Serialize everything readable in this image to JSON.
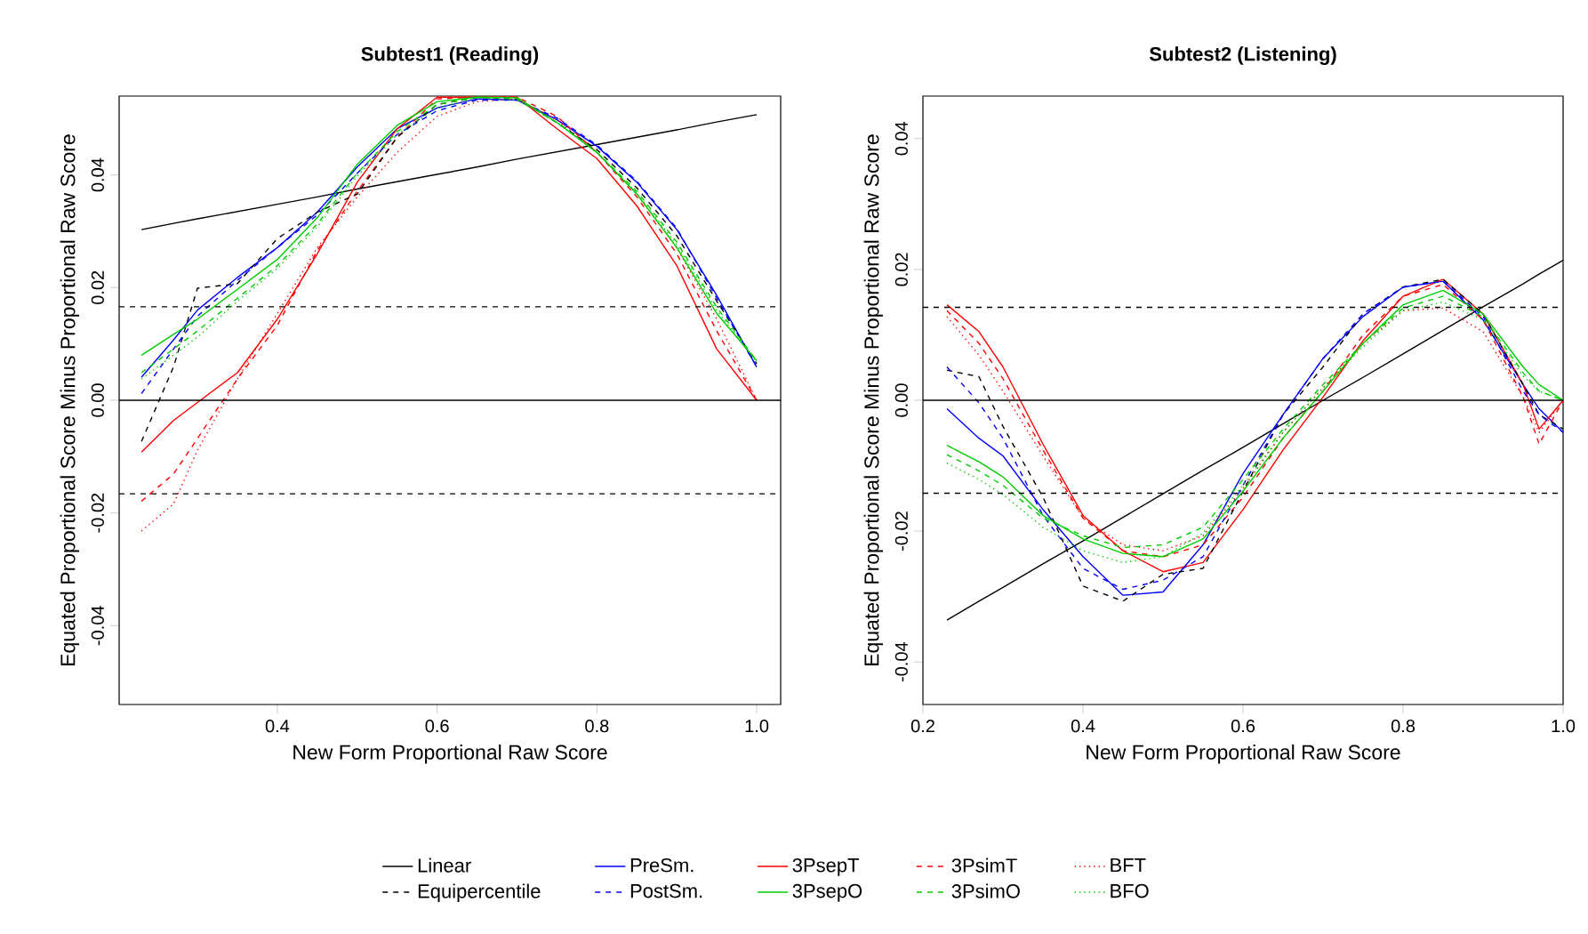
{
  "chart_data": [
    {
      "type": "line",
      "title": "Subtest1 (Reading)",
      "xlabel": "New Form Proportional Raw Score",
      "ylabel": "Equated Proportional Score Minus Proportional Raw Score",
      "legend": "bottom",
      "xlim": [
        0.202,
        1.03
      ],
      "ylim": [
        -0.054,
        0.054
      ],
      "xticks": [
        0.4,
        0.6,
        0.8,
        {
          "value": 1.0,
          "label": "1.0"
        }
      ],
      "yticks": [
        {
          "value": -0.04,
          "label": "-0.04"
        },
        {
          "value": -0.02,
          "label": "-0.02"
        },
        {
          "value": 0,
          "label": "0.00"
        },
        {
          "value": 0.02,
          "label": "0.02"
        },
        {
          "value": 0.04,
          "label": "0.04"
        }
      ],
      "x": [
        0.23,
        0.27,
        0.3,
        0.35,
        0.4,
        0.45,
        0.5,
        0.55,
        0.6,
        0.65,
        0.7,
        0.75,
        0.8,
        0.85,
        0.9,
        0.95,
        1.0
      ],
      "ref_lines": [
        {
          "axis": "y",
          "value": 0,
          "color": "#000000",
          "line_style": "solid"
        },
        {
          "axis": "y",
          "value": 0.0166,
          "color": "#000000",
          "line_style": "dashed"
        },
        {
          "axis": "y",
          "value": -0.0166,
          "color": "#000000",
          "line_style": "dashed"
        }
      ],
      "series": [
        {
          "name": "Linear",
          "color": "#000000",
          "line_style": "solid",
          "values": [
            0.0303,
            0.0314,
            0.0322,
            0.0335,
            0.0348,
            0.0361,
            0.0375,
            0.0388,
            0.0401,
            0.0414,
            0.0428,
            0.0441,
            0.0454,
            0.0467,
            0.048,
            0.0494,
            0.0507
          ]
        },
        {
          "name": "PreSm.",
          "color": "#0000ff",
          "line_style": "solid",
          "values": [
            0.0041,
            0.0107,
            0.016,
            0.0218,
            0.0271,
            0.0334,
            0.0414,
            0.0482,
            0.0519,
            0.0535,
            0.0533,
            0.0498,
            0.0451,
            0.0387,
            0.0303,
            0.0186,
            0.0059
          ]
        },
        {
          "name": "3PsepT",
          "color": "#ff0000",
          "line_style": "solid",
          "values": [
            -0.0092,
            -0.0036,
            -0.0004,
            0.0049,
            0.0144,
            0.026,
            0.0387,
            0.0482,
            0.0538,
            0.0538,
            0.0538,
            0.0482,
            0.0429,
            0.0345,
            0.0239,
            0.0091,
            0.0
          ]
        },
        {
          "name": "3PsimT",
          "color": "#ff0000",
          "line_style": "dashed",
          "values": [
            -0.0179,
            -0.0131,
            -0.0068,
            0.0038,
            0.0133,
            0.0266,
            0.0371,
            0.0467,
            0.0535,
            0.0538,
            0.0538,
            0.0504,
            0.044,
            0.0361,
            0.026,
            0.0123,
            0.0
          ]
        },
        {
          "name": "BFT",
          "color": "#ff0000",
          "line_style": "dotted",
          "values": [
            -0.0232,
            -0.0184,
            -0.0089,
            0.0038,
            0.0154,
            0.0271,
            0.0361,
            0.044,
            0.0504,
            0.053,
            0.0535,
            0.0498,
            0.044,
            0.0366,
            0.0271,
            0.0144,
            0.0
          ]
        },
        {
          "name": "Equipercentile",
          "color": "#000000",
          "line_style": "dashed",
          "values": [
            -0.0073,
            0.0059,
            0.0199,
            0.0207,
            0.0287,
            0.0334,
            0.0366,
            0.0467,
            0.0525,
            0.0538,
            0.0535,
            0.0493,
            0.0445,
            0.0377,
            0.0292,
            0.0176,
            0.0065
          ]
        },
        {
          "name": "PostSm.",
          "color": "#0000ff",
          "line_style": "dashed",
          "values": [
            0.0012,
            0.0091,
            0.0149,
            0.0213,
            0.0271,
            0.0329,
            0.0403,
            0.0472,
            0.0514,
            0.0533,
            0.0533,
            0.0501,
            0.0453,
            0.0389,
            0.0305,
            0.0181,
            0.0059
          ]
        },
        {
          "name": "3PsepO",
          "color": "#00cc00",
          "line_style": "solid",
          "values": [
            0.008,
            0.0117,
            0.0144,
            0.0197,
            0.025,
            0.0324,
            0.0419,
            0.0488,
            0.053,
            0.0538,
            0.0537,
            0.0493,
            0.044,
            0.0366,
            0.0271,
            0.0154,
            0.007
          ]
        },
        {
          "name": "3PsimO",
          "color": "#00cc00",
          "line_style": "dashed",
          "values": [
            0.0049,
            0.0091,
            0.0123,
            0.0181,
            0.0239,
            0.0313,
            0.0403,
            0.0477,
            0.0525,
            0.0538,
            0.0535,
            0.0493,
            0.044,
            0.0371,
            0.0281,
            0.0165,
            0.007
          ]
        },
        {
          "name": "BFO",
          "color": "#00cc00",
          "line_style": "dotted",
          "values": [
            0.0038,
            0.008,
            0.0112,
            0.0176,
            0.0234,
            0.0308,
            0.0398,
            0.0472,
            0.0519,
            0.0537,
            0.0533,
            0.0493,
            0.044,
            0.0368,
            0.0276,
            0.016,
            0.0068
          ]
        }
      ]
    },
    {
      "type": "line",
      "title": "Subtest2 (Listening)",
      "xlabel": "New Form Proportional Raw Score",
      "ylabel": "Equated Proportional Score Minus Proportional Raw Score",
      "xlim": [
        0.2,
        1.0
      ],
      "ylim": [
        -0.0465,
        0.0465
      ],
      "xticks": [
        0.2,
        0.4,
        0.6,
        0.8,
        {
          "value": 1.0,
          "label": "1.0"
        }
      ],
      "yticks": [
        {
          "value": -0.04,
          "label": "-0.04"
        },
        {
          "value": -0.02,
          "label": "-0.02"
        },
        {
          "value": 0,
          "label": "0.00"
        },
        {
          "value": 0.02,
          "label": "0.02"
        },
        {
          "value": 0.04,
          "label": "0.04"
        }
      ],
      "x": [
        0.23,
        0.27,
        0.3,
        0.35,
        0.4,
        0.45,
        0.5,
        0.55,
        0.6,
        0.65,
        0.7,
        0.75,
        0.8,
        0.85,
        0.9,
        0.95,
        0.97,
        1.0
      ],
      "ref_lines": [
        {
          "axis": "y",
          "value": 0,
          "color": "#000000",
          "line_style": "solid"
        },
        {
          "axis": "y",
          "value": 0.0142,
          "color": "#000000",
          "line_style": "dashed"
        },
        {
          "axis": "y",
          "value": -0.0142,
          "color": "#000000",
          "line_style": "dashed"
        }
      ],
      "series": [
        {
          "color": "#000000",
          "line_style": "solid",
          "values": [
            -0.0336,
            -0.0307,
            -0.0286,
            -0.025,
            -0.0215,
            -0.0179,
            -0.0143,
            -0.0107,
            -0.0072,
            -0.0036,
            0.0,
            0.0035,
            0.0071,
            0.0107,
            0.0143,
            0.0178,
            0.0193,
            0.0214
          ]
        },
        {
          "color": "#0000ff",
          "line_style": "solid",
          "values": [
            -0.0013,
            -0.0058,
            -0.0085,
            -0.0167,
            -0.0239,
            -0.0298,
            -0.0293,
            -0.0221,
            -0.0112,
            -0.0022,
            0.0064,
            0.0128,
            0.0173,
            0.0182,
            0.0123,
            0.0024,
            -0.0013,
            -0.0049
          ]
        },
        {
          "color": "#ff0000",
          "line_style": "solid",
          "values": [
            0.0146,
            0.0105,
            0.0051,
            -0.0067,
            -0.0176,
            -0.023,
            -0.0262,
            -0.0248,
            -0.0167,
            -0.0076,
            0.0005,
            0.0091,
            0.0159,
            0.0185,
            0.0132,
            0.0024,
            -0.0044,
            0.0
          ]
        },
        {
          "color": "#ff0000",
          "line_style": "dashed",
          "values": [
            0.0137,
            0.0087,
            0.0033,
            -0.0076,
            -0.018,
            -0.023,
            -0.0239,
            -0.0221,
            -0.0148,
            -0.0058,
            0.0014,
            0.01,
            0.0159,
            0.0177,
            0.0123,
            0.0005,
            -0.0067,
            0.0
          ]
        },
        {
          "color": "#ff0000",
          "line_style": "dotted",
          "values": [
            0.0128,
            0.0069,
            0.0014,
            -0.0085,
            -0.018,
            -0.0221,
            -0.023,
            -0.0207,
            -0.0135,
            -0.0049,
            0.0019,
            0.0087,
            0.0137,
            0.0141,
            0.0105,
            0.0005,
            -0.0049,
            0.0
          ]
        },
        {
          "color": "#000000",
          "line_style": "dashed",
          "values": [
            0.0046,
            0.0036,
            -0.004,
            -0.0148,
            -0.0284,
            -0.0307,
            -0.0266,
            -0.0257,
            -0.0139,
            -0.0022,
            0.0051,
            0.0132,
            0.0173,
            0.0185,
            0.0132,
            0.0024,
            -0.0022,
            -0.0044
          ]
        },
        {
          "color": "#0000ff",
          "line_style": "dashed",
          "values": [
            0.0051,
            -0.0004,
            -0.0058,
            -0.0176,
            -0.0257,
            -0.0289,
            -0.0275,
            -0.0239,
            -0.013,
            -0.0022,
            0.0064,
            0.0132,
            0.0173,
            0.0182,
            0.0128,
            0.0014,
            -0.0022,
            -0.0049
          ]
        },
        {
          "color": "#00cc00",
          "line_style": "solid",
          "values": [
            -0.0069,
            -0.0094,
            -0.0117,
            -0.0176,
            -0.0212,
            -0.0234,
            -0.0239,
            -0.0212,
            -0.0139,
            -0.0058,
            0.0014,
            0.0087,
            0.0146,
            0.0168,
            0.0132,
            0.0051,
            0.0024,
            0.0
          ]
        },
        {
          "color": "#00cc00",
          "line_style": "dashed",
          "values": [
            -0.0083,
            -0.0108,
            -0.013,
            -0.018,
            -0.0207,
            -0.0225,
            -0.0221,
            -0.0194,
            -0.0121,
            -0.0044,
            0.0024,
            0.0087,
            0.0141,
            0.0159,
            0.0128,
            0.0042,
            0.0014,
            0.0
          ]
        },
        {
          "color": "#00cc00",
          "line_style": "dotted",
          "values": [
            -0.0096,
            -0.0121,
            -0.0144,
            -0.0194,
            -0.023,
            -0.0248,
            -0.0239,
            -0.0203,
            -0.013,
            -0.0049,
            0.0019,
            0.0082,
            0.0137,
            0.015,
            0.0123,
            0.0037,
            0.0014,
            0.0
          ]
        }
      ]
    }
  ]
}
